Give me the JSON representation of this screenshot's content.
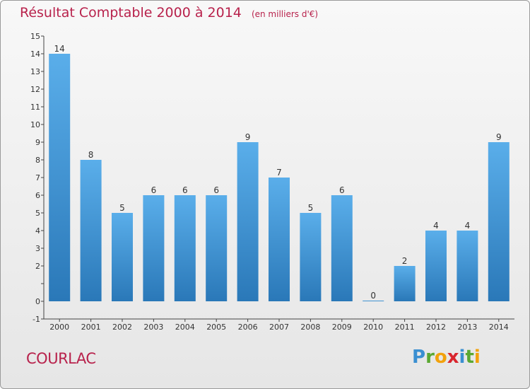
{
  "header": {
    "title": "Résultat Comptable 2000 à 2014",
    "unit": "(en milliers d'€)"
  },
  "commune": "COURLAC",
  "logo": {
    "text": "Proxiti",
    "letters": [
      {
        "ch": "P",
        "color": "#3a8fd1"
      },
      {
        "ch": "r",
        "color": "#5aa832"
      },
      {
        "ch": "o",
        "color": "#f2a20d"
      },
      {
        "ch": "x",
        "color": "#d9262e"
      },
      {
        "ch": "i",
        "color": "#3a8fd1"
      },
      {
        "ch": "t",
        "color": "#5aa832"
      },
      {
        "ch": "i",
        "color": "#f2a20d"
      }
    ]
  },
  "colors": {
    "title": "#b8224c",
    "bar_top": "#5aaeea",
    "bar_bottom": "#2a78b8",
    "axis": "#444444"
  },
  "chart_data": {
    "type": "bar",
    "categories": [
      "2000",
      "2001",
      "2002",
      "2003",
      "2004",
      "2005",
      "2006",
      "2007",
      "2008",
      "2009",
      "2010",
      "2011",
      "2012",
      "2013",
      "2014"
    ],
    "values": [
      14,
      8,
      5,
      6,
      6,
      6,
      9,
      7,
      5,
      6,
      0,
      2,
      4,
      4,
      9
    ],
    "data_labels": [
      "14",
      "8",
      "5",
      "6",
      "6",
      "6",
      "9",
      "7",
      "5",
      "6",
      "0",
      "2",
      "4",
      "4",
      "9"
    ],
    "ylim": [
      -1,
      15
    ],
    "yticks": [
      -1,
      0,
      1,
      2,
      3,
      4,
      5,
      6,
      7,
      8,
      9,
      10,
      11,
      12,
      13,
      14,
      15
    ],
    "ytick_labels": [
      "-1",
      "0",
      "",
      "2",
      "3",
      "4",
      "5",
      "6",
      "7",
      "8",
      "9",
      "10",
      "11",
      "12",
      "13",
      "14",
      "15"
    ],
    "grid": false
  }
}
